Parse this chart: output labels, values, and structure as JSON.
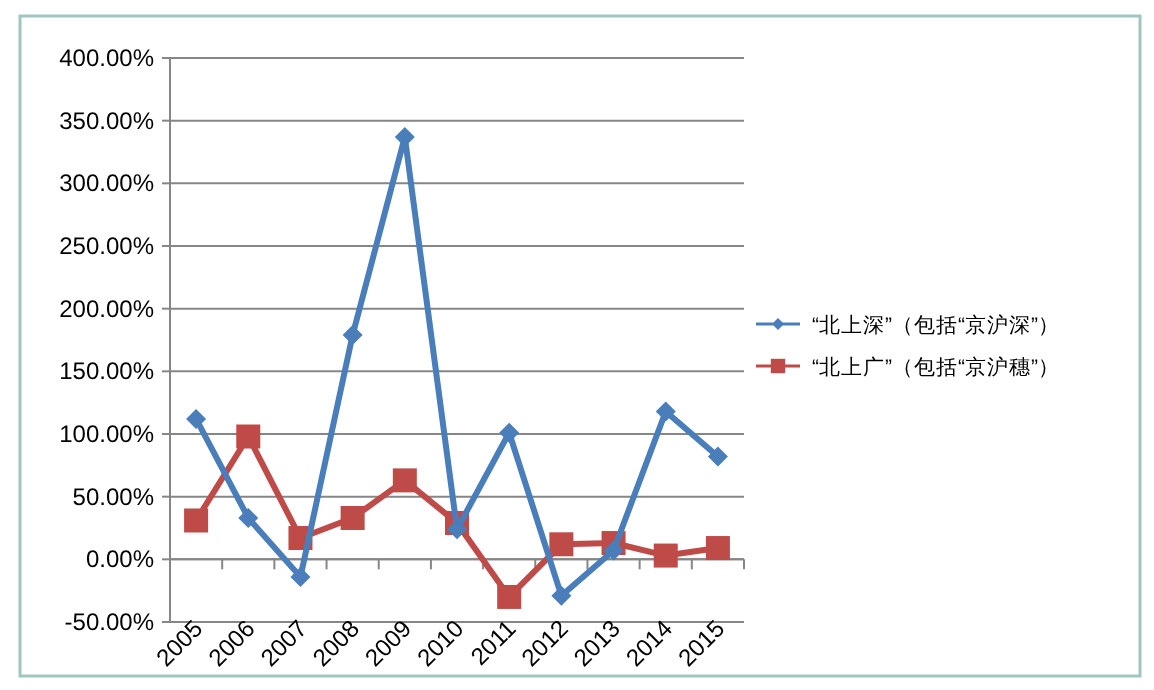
{
  "chart_data": {
    "type": "line",
    "categories": [
      "2005",
      "2006",
      "2007",
      "2008",
      "2009",
      "2010",
      "2011",
      "2012",
      "2013",
      "2014",
      "2015"
    ],
    "series": [
      {
        "name": "“北上深”（包括“京沪深”）",
        "color": "#4a7ebb",
        "marker": "diamond",
        "values": [
          112,
          33,
          -14,
          179,
          337,
          24,
          101,
          -29,
          7,
          118,
          82
        ]
      },
      {
        "name": "“北上广”（包括“京沪穗”）",
        "color": "#be4b48",
        "marker": "square",
        "values": [
          31,
          98,
          17,
          33,
          63,
          29,
          -30,
          12,
          13,
          3,
          9
        ]
      }
    ],
    "ylim": [
      -50,
      400
    ],
    "yticks": [
      {
        "value": -50,
        "label": "-50.00%"
      },
      {
        "value": 0,
        "label": "0.00%"
      },
      {
        "value": 50,
        "label": "50.00%"
      },
      {
        "value": 100,
        "label": "100.00%"
      },
      {
        "value": 150,
        "label": "150.00%"
      },
      {
        "value": 200,
        "label": "200.00%"
      },
      {
        "value": 250,
        "label": "250.00%"
      },
      {
        "value": 300,
        "label": "300.00%"
      },
      {
        "value": 350,
        "label": "350.00%"
      },
      {
        "value": 400,
        "label": "400.00%"
      }
    ],
    "grid": "y",
    "legend": "right"
  }
}
